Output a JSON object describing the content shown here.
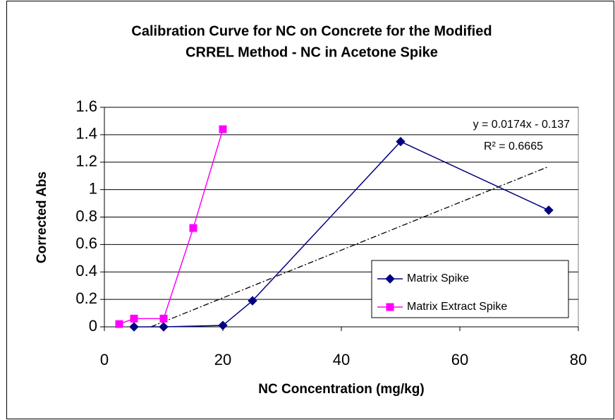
{
  "chart_data": {
    "type": "line",
    "title": [
      "Calibration Curve for NC on Concrete for the Modified",
      "CRREL Method - NC in Acetone Spike"
    ],
    "xlabel": "NC Concentration (mg/kg)",
    "ylabel": "Corrected Abs",
    "xlim": [
      0,
      80
    ],
    "xticks": [
      0,
      20,
      40,
      60,
      80
    ],
    "ylim": [
      0,
      1.6
    ],
    "yticks": [
      0,
      0.2,
      0.4,
      0.6,
      0.8,
      1,
      1.2,
      1.4,
      1.6
    ],
    "grid": true,
    "legend": "lower right",
    "series": [
      {
        "name": "Matrix Spike",
        "color": "#000080",
        "marker": "diamond",
        "x": [
          5,
          10,
          20,
          25,
          50,
          75
        ],
        "values": [
          0,
          0,
          0.01,
          0.19,
          1.35,
          0.85
        ]
      },
      {
        "name": "Matrix Extract Spike",
        "color": "#ff00ff",
        "marker": "square",
        "x": [
          2.5,
          5,
          10,
          15,
          20
        ],
        "values": [
          0.02,
          0.06,
          0.06,
          0.72,
          1.44
        ]
      }
    ],
    "trendline": {
      "series": 0,
      "slope": 0.0174,
      "intercept": -0.137,
      "label": "y = 0.0174x - 0.137",
      "r2_label": "R² = 0.6665"
    }
  }
}
